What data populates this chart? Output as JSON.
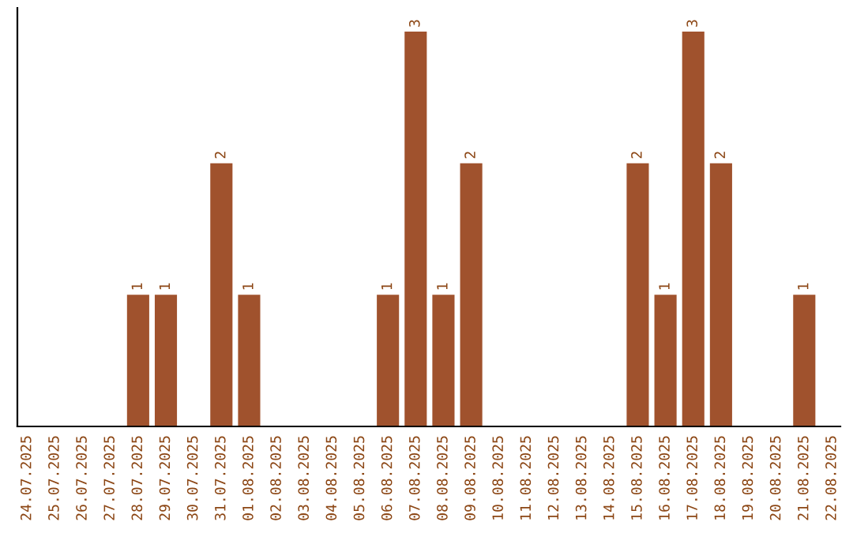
{
  "chart_data": {
    "type": "bar",
    "categories": [
      "24.07.2025",
      "25.07.2025",
      "26.07.2025",
      "27.07.2025",
      "28.07.2025",
      "29.07.2025",
      "30.07.2025",
      "31.07.2025",
      "01.08.2025",
      "02.08.2025",
      "03.08.2025",
      "04.08.2025",
      "05.08.2025",
      "06.08.2025",
      "07.08.2025",
      "08.08.2025",
      "09.08.2025",
      "10.08.2025",
      "11.08.2025",
      "12.08.2025",
      "13.08.2025",
      "14.08.2025",
      "15.08.2025",
      "16.08.2025",
      "17.08.2025",
      "18.08.2025",
      "19.08.2025",
      "20.08.2025",
      "21.08.2025",
      "22.08.2025"
    ],
    "values": [
      null,
      null,
      null,
      null,
      1,
      1,
      null,
      2,
      1,
      null,
      null,
      null,
      null,
      1,
      3,
      1,
      2,
      null,
      null,
      null,
      null,
      null,
      2,
      1,
      3,
      2,
      null,
      null,
      1,
      null
    ],
    "color": "#a0522d",
    "data_labels": true,
    "tick_labels": "x",
    "grid": false
  }
}
